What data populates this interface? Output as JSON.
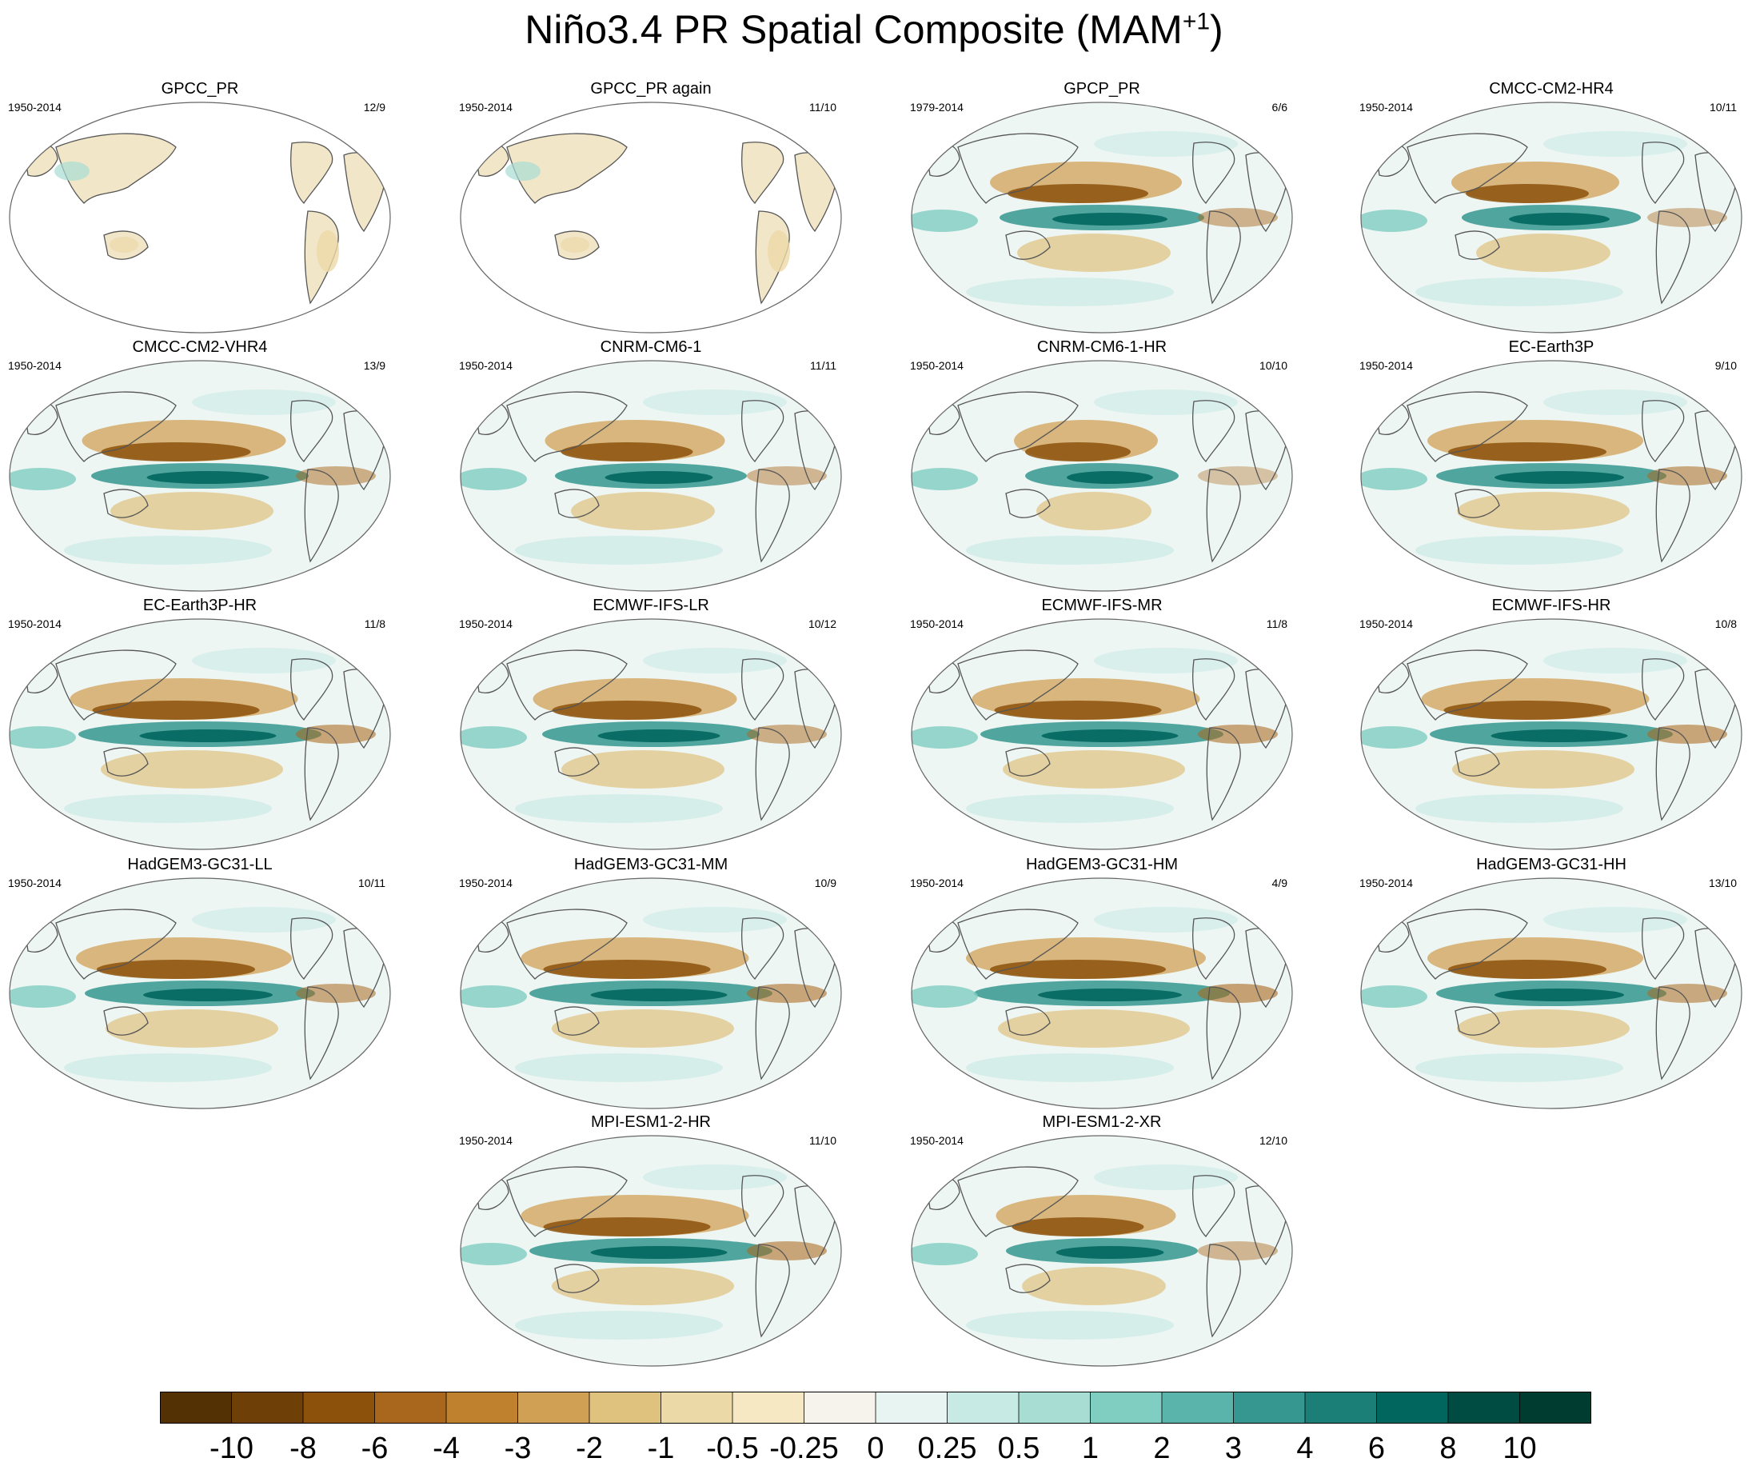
{
  "title_main": "Niño3.4 PR Spatial Composite (MAM",
  "title_sup": "+1",
  "title_end": ")",
  "panels": [
    {
      "name": "GPCC_PR",
      "years": "1950-2014",
      "counts": "12/9",
      "land_only": true,
      "intensity": 0.3
    },
    {
      "name": "GPCC_PR again",
      "years": "1950-2014",
      "counts": "11/10",
      "land_only": true,
      "intensity": 0.3
    },
    {
      "name": "GPCP_PR",
      "years": "1979-2014",
      "counts": "6/6",
      "land_only": false,
      "intensity": 0.8
    },
    {
      "name": "CMCC-CM2-HR4",
      "years": "1950-2014",
      "counts": "10/11",
      "land_only": false,
      "intensity": 0.7
    },
    {
      "name": "CMCC-CM2-VHR4",
      "years": "1950-2014",
      "counts": "13/9",
      "land_only": false,
      "intensity": 0.85
    },
    {
      "name": "CNRM-CM6-1",
      "years": "1950-2014",
      "counts": "11/11",
      "land_only": false,
      "intensity": 0.75
    },
    {
      "name": "CNRM-CM6-1-HR",
      "years": "1950-2014",
      "counts": "10/10",
      "land_only": false,
      "intensity": 0.6
    },
    {
      "name": "EC-Earth3P",
      "years": "1950-2014",
      "counts": "9/10",
      "land_only": false,
      "intensity": 0.9
    },
    {
      "name": "EC-Earth3P-HR",
      "years": "1950-2014",
      "counts": "11/8",
      "land_only": false,
      "intensity": 0.95
    },
    {
      "name": "ECMWF-IFS-LR",
      "years": "1950-2014",
      "counts": "10/12",
      "land_only": false,
      "intensity": 0.85
    },
    {
      "name": "ECMWF-IFS-MR",
      "years": "1950-2014",
      "counts": "11/8",
      "land_only": false,
      "intensity": 0.95
    },
    {
      "name": "ECMWF-IFS-HR",
      "years": "1950-2014",
      "counts": "10/8",
      "land_only": false,
      "intensity": 0.95
    },
    {
      "name": "HadGEM3-GC31-LL",
      "years": "1950-2014",
      "counts": "10/11",
      "land_only": false,
      "intensity": 0.9
    },
    {
      "name": "HadGEM3-GC31-MM",
      "years": "1950-2014",
      "counts": "10/9",
      "land_only": false,
      "intensity": 0.95
    },
    {
      "name": "HadGEM3-GC31-HM",
      "years": "1950-2014",
      "counts": "4/9",
      "land_only": false,
      "intensity": 1.0
    },
    {
      "name": "HadGEM3-GC31-HH",
      "years": "1950-2014",
      "counts": "13/10",
      "land_only": false,
      "intensity": 0.9
    },
    {
      "name": "MPI-ESM1-2-HR",
      "years": "1950-2014",
      "counts": "11/10",
      "land_only": false,
      "intensity": 0.95
    },
    {
      "name": "MPI-ESM1-2-XR",
      "years": "1950-2014",
      "counts": "12/10",
      "land_only": false,
      "intensity": 0.75
    }
  ],
  "colorbar": {
    "labels": [
      "-10",
      "-8",
      "-6",
      "-4",
      "-3",
      "-2",
      "-1",
      "-0.5",
      "-0.25",
      "0",
      "0.25",
      "0.5",
      "1",
      "2",
      "3",
      "4",
      "6",
      "8",
      "10"
    ],
    "colors": [
      "#543005",
      "#6f3f08",
      "#8c510a",
      "#a8671c",
      "#bf812d",
      "#d0a055",
      "#dfc27d",
      "#ecd9a8",
      "#f6e8c3",
      "#f5f3eb",
      "#e8f4f1",
      "#c7eae5",
      "#a8ddd4",
      "#80cdc1",
      "#5ab4ac",
      "#35978f",
      "#1c7f77",
      "#01665e",
      "#004c42",
      "#003c30"
    ]
  }
}
